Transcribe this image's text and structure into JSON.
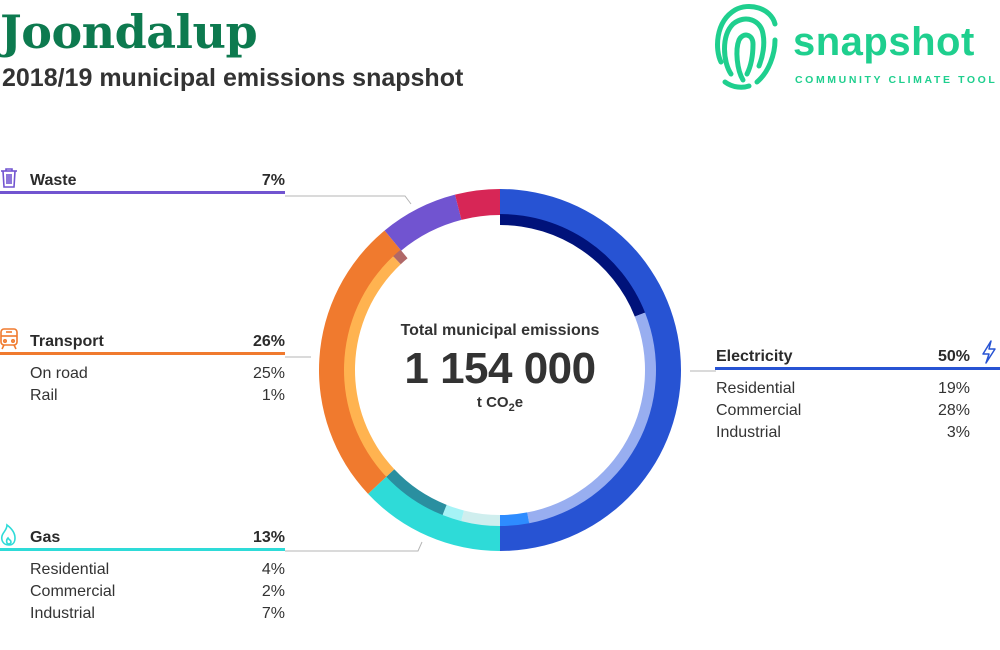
{
  "header": {
    "title": "Joondalup",
    "subtitle": "2018/19 municipal emissions snapshot"
  },
  "logo": {
    "word": "snapshot",
    "tagline": "COMMUNITY CLIMATE TOOL",
    "icon": "fingerprint-icon",
    "color": "#1fcf8e"
  },
  "chart_data": {
    "type": "pie",
    "style": "donut",
    "center": {
      "label": "Total municipal emissions",
      "total": "1 154 000",
      "unit": "t CO",
      "unit_subscript": "2",
      "unit_suffix": "e"
    },
    "categories": [
      {
        "key": "electricity",
        "name": "Electricity",
        "percent": 50,
        "percent_label": "50%",
        "color": "#2753d3",
        "icon": "lightning-bolt-icon",
        "subcategories": [
          {
            "name": "Residential",
            "percent": 19,
            "percent_label": "19%",
            "color": "#00127a"
          },
          {
            "name": "Commercial",
            "percent": 28,
            "percent_label": "28%",
            "color": "#98aef0"
          },
          {
            "name": "Industrial",
            "percent": 3,
            "percent_label": "3%",
            "color": "#2e8cff"
          }
        ]
      },
      {
        "key": "gas",
        "name": "Gas",
        "percent": 13,
        "percent_label": "13%",
        "color": "#2edbd8",
        "icon": "flame-icon",
        "subcategories": [
          {
            "name": "Residential",
            "percent": 4,
            "percent_label": "4%",
            "color": "#cfeeee"
          },
          {
            "name": "Commercial",
            "percent": 2,
            "percent_label": "2%",
            "color": "#a5f3f6"
          },
          {
            "name": "Industrial",
            "percent": 7,
            "percent_label": "7%",
            "color": "#2a8fa0"
          }
        ]
      },
      {
        "key": "transport",
        "name": "Transport",
        "percent": 26,
        "percent_label": "26%",
        "color": "#f07a2e",
        "icon": "train-icon",
        "subcategories": [
          {
            "name": "On road",
            "percent": 25,
            "percent_label": "25%",
            "color": "#ffb350"
          },
          {
            "name": "Rail",
            "percent": 1,
            "percent_label": "1%",
            "color": "#b06868"
          }
        ]
      },
      {
        "key": "waste",
        "name": "Waste",
        "percent": 7,
        "percent_label": "7%",
        "color": "#7154d0",
        "icon": "trash-bin-icon",
        "subcategories": []
      },
      {
        "key": "other",
        "name": "",
        "percent": 4,
        "percent_label": "",
        "color": "#d72656",
        "icon": "",
        "subcategories": []
      }
    ]
  }
}
